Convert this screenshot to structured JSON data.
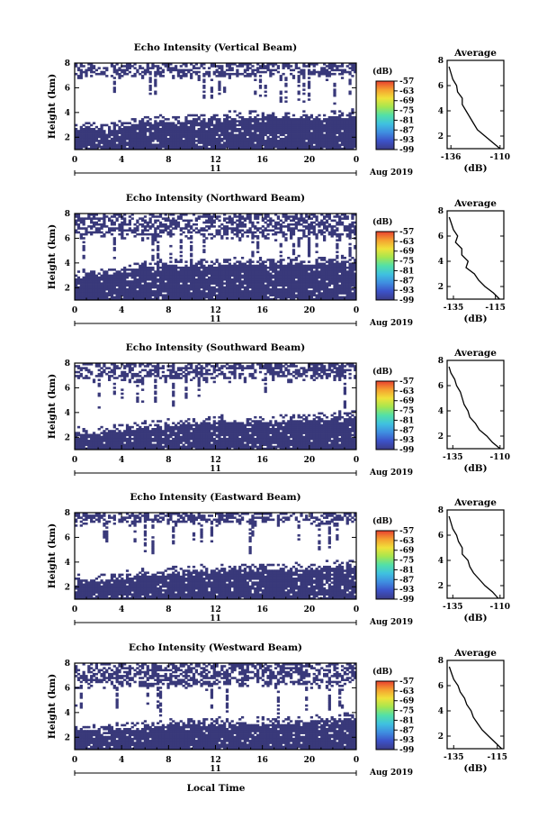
{
  "figure": {
    "x_label": "Local Time",
    "date_label": "Aug 2019",
    "day_label": "11"
  },
  "chart_data": [
    {
      "type": "heatmap",
      "title": "Echo Intensity (Vertical Beam)",
      "ylabel": "Height (km)",
      "xticks": [
        "0",
        "4",
        "8",
        "12",
        "16",
        "20",
        "0"
      ],
      "yticks": [
        "2",
        "4",
        "6",
        "8"
      ],
      "xlim": [
        0,
        24
      ],
      "ylim": [
        1,
        8
      ],
      "colorbar": {
        "unit": "(dB)",
        "ticks": [
          "-57",
          "-63",
          "-69",
          "-75",
          "-81",
          "-87",
          "-93",
          "-99"
        ]
      },
      "dominant_level_db": -99,
      "echo_layer_top_km": [
        2.6,
        2.6,
        3.2,
        3.3,
        3.5,
        3.6,
        3.6,
        3.5,
        3.7
      ],
      "upper_echo_band_km": [
        6.8,
        8.0
      ],
      "profile": {
        "title": "Average",
        "xlabel": "(dB)",
        "xticks": [
          "-136",
          "-110"
        ],
        "xlim": [
          -138,
          -108
        ],
        "yticks": [
          "2",
          "4",
          "6",
          "8"
        ],
        "ylim": [
          1,
          8
        ],
        "height_km": [
          7.5,
          7.0,
          6.5,
          6.0,
          5.5,
          5.0,
          4.5,
          4.0,
          3.5,
          3.0,
          2.5,
          2.0,
          1.5,
          1.0
        ],
        "mean_db": [
          -137,
          -136,
          -135,
          -133,
          -132.5,
          -130,
          -130,
          -128,
          -126,
          -124,
          -122,
          -118,
          -114,
          -110
        ]
      }
    },
    {
      "type": "heatmap",
      "title": "Echo Intensity (Northward Beam)",
      "ylabel": "Height (km)",
      "xticks": [
        "0",
        "4",
        "8",
        "12",
        "16",
        "20",
        "0"
      ],
      "yticks": [
        "2",
        "4",
        "6",
        "8"
      ],
      "xlim": [
        0,
        24
      ],
      "ylim": [
        1,
        8
      ],
      "colorbar": {
        "unit": "(dB)",
        "ticks": [
          "-57",
          "-63",
          "-69",
          "-75",
          "-81",
          "-87",
          "-93",
          "-99"
        ]
      },
      "dominant_level_db": -99,
      "echo_layer_top_km": [
        2.9,
        3.1,
        3.6,
        3.8,
        3.9,
        3.9,
        3.9,
        4.0,
        4.1
      ],
      "upper_echo_band_km": [
        6.0,
        8.0
      ],
      "profile": {
        "title": "Average",
        "xlabel": "(dB)",
        "xticks": [
          "-135",
          "-115"
        ],
        "xlim": [
          -138,
          -111
        ],
        "yticks": [
          "2",
          "4",
          "6",
          "8"
        ],
        "ylim": [
          1,
          8
        ],
        "height_km": [
          7.5,
          7.0,
          6.5,
          6.0,
          5.5,
          5.0,
          4.5,
          4.0,
          3.5,
          3.0,
          2.5,
          2.0,
          1.5,
          1.0
        ],
        "mean_db": [
          -137,
          -136,
          -135,
          -133,
          -134,
          -131,
          -131,
          -128,
          -129,
          -125,
          -123,
          -120,
          -116,
          -113
        ]
      }
    },
    {
      "type": "heatmap",
      "title": "Echo Intensity (Southward Beam)",
      "ylabel": "Height (km)",
      "xticks": [
        "0",
        "4",
        "8",
        "12",
        "16",
        "20",
        "0"
      ],
      "yticks": [
        "2",
        "4",
        "6",
        "8"
      ],
      "xlim": [
        0,
        24
      ],
      "ylim": [
        1,
        8
      ],
      "colorbar": {
        "unit": "(dB)",
        "ticks": [
          "-57",
          "-63",
          "-69",
          "-75",
          "-81",
          "-87",
          "-93",
          "-99"
        ]
      },
      "dominant_level_db": -99,
      "echo_layer_top_km": [
        2.3,
        2.4,
        2.8,
        3.0,
        3.2,
        3.2,
        3.3,
        3.4,
        3.6
      ],
      "upper_echo_band_km": [
        6.6,
        8.0
      ],
      "profile": {
        "title": "Average",
        "xlabel": "(dB)",
        "xticks": [
          "-135",
          "-110"
        ],
        "xlim": [
          -138,
          -108
        ],
        "yticks": [
          "2",
          "4",
          "6",
          "8"
        ],
        "ylim": [
          1,
          8
        ],
        "height_km": [
          7.5,
          7.0,
          6.5,
          6.0,
          5.5,
          5.0,
          4.5,
          4.0,
          3.5,
          3.0,
          2.5,
          2.0,
          1.5,
          1.0
        ],
        "mean_db": [
          -137,
          -136,
          -134,
          -133,
          -131,
          -130,
          -129,
          -127,
          -126,
          -123,
          -121,
          -117,
          -114,
          -110
        ]
      }
    },
    {
      "type": "heatmap",
      "title": "Echo Intensity (Eastward Beam)",
      "ylabel": "Height (km)",
      "xticks": [
        "0",
        "4",
        "8",
        "12",
        "16",
        "20",
        "0"
      ],
      "yticks": [
        "2",
        "4",
        "6",
        "8"
      ],
      "xlim": [
        0,
        24
      ],
      "ylim": [
        1,
        8
      ],
      "colorbar": {
        "unit": "(dB)",
        "ticks": [
          "-57",
          "-63",
          "-69",
          "-75",
          "-81",
          "-87",
          "-93",
          "-99"
        ]
      },
      "dominant_level_db": -99,
      "echo_layer_top_km": [
        2.4,
        2.6,
        2.9,
        3.1,
        3.3,
        3.3,
        3.4,
        3.5,
        3.7
      ],
      "upper_echo_band_km": [
        7.0,
        8.0
      ],
      "profile": {
        "title": "Average",
        "xlabel": "(dB)",
        "xticks": [
          "-135",
          "-110"
        ],
        "xlim": [
          -138,
          -108
        ],
        "yticks": [
          "2",
          "4",
          "6",
          "8"
        ],
        "ylim": [
          1,
          8
        ],
        "height_km": [
          7.5,
          7.0,
          6.5,
          6.0,
          5.5,
          5.0,
          4.5,
          4.0,
          3.5,
          3.0,
          2.5,
          2.0,
          1.5,
          1.0
        ],
        "mean_db": [
          -137,
          -136,
          -135,
          -133,
          -132,
          -130,
          -130,
          -127,
          -126,
          -124,
          -121,
          -118,
          -114,
          -111
        ]
      }
    },
    {
      "type": "heatmap",
      "title": "Echo Intensity (Westward Beam)",
      "ylabel": "Height (km)",
      "xticks": [
        "0",
        "4",
        "8",
        "12",
        "16",
        "20",
        "0"
      ],
      "yticks": [
        "2",
        "4",
        "6",
        "8"
      ],
      "xlim": [
        0,
        24
      ],
      "ylim": [
        1,
        8
      ],
      "colorbar": {
        "unit": "(dB)",
        "ticks": [
          "-57",
          "-63",
          "-69",
          "-75",
          "-81",
          "-87",
          "-93",
          "-99"
        ]
      },
      "dominant_level_db": -99,
      "echo_layer_top_km": [
        2.5,
        2.6,
        2.8,
        3.0,
        3.1,
        3.1,
        3.2,
        3.3,
        3.5
      ],
      "upper_echo_band_km": [
        6.0,
        8.0
      ],
      "profile": {
        "title": "Average",
        "xlabel": "(dB)",
        "xticks": [
          "-135",
          "-115"
        ],
        "xlim": [
          -138,
          -112
        ],
        "yticks": [
          "2",
          "4",
          "6",
          "8"
        ],
        "ylim": [
          1,
          8
        ],
        "height_km": [
          7.5,
          7.0,
          6.5,
          6.0,
          5.5,
          5.0,
          4.5,
          4.0,
          3.5,
          3.0,
          2.5,
          2.0,
          1.5,
          1.0
        ],
        "mean_db": [
          -137,
          -136,
          -135,
          -133,
          -132,
          -130,
          -129,
          -127,
          -126,
          -124,
          -122,
          -119,
          -116,
          -113
        ]
      }
    }
  ],
  "colors": {
    "echo_fill": "#39397a",
    "axis": "#000000",
    "background": "#ffffff",
    "colorbar_scale": [
      "#3b3b85",
      "#3c52c8",
      "#3f8de0",
      "#3fc1e0",
      "#52e0a8",
      "#a6e64f",
      "#f0e23a",
      "#f5a030",
      "#e8402f"
    ]
  }
}
